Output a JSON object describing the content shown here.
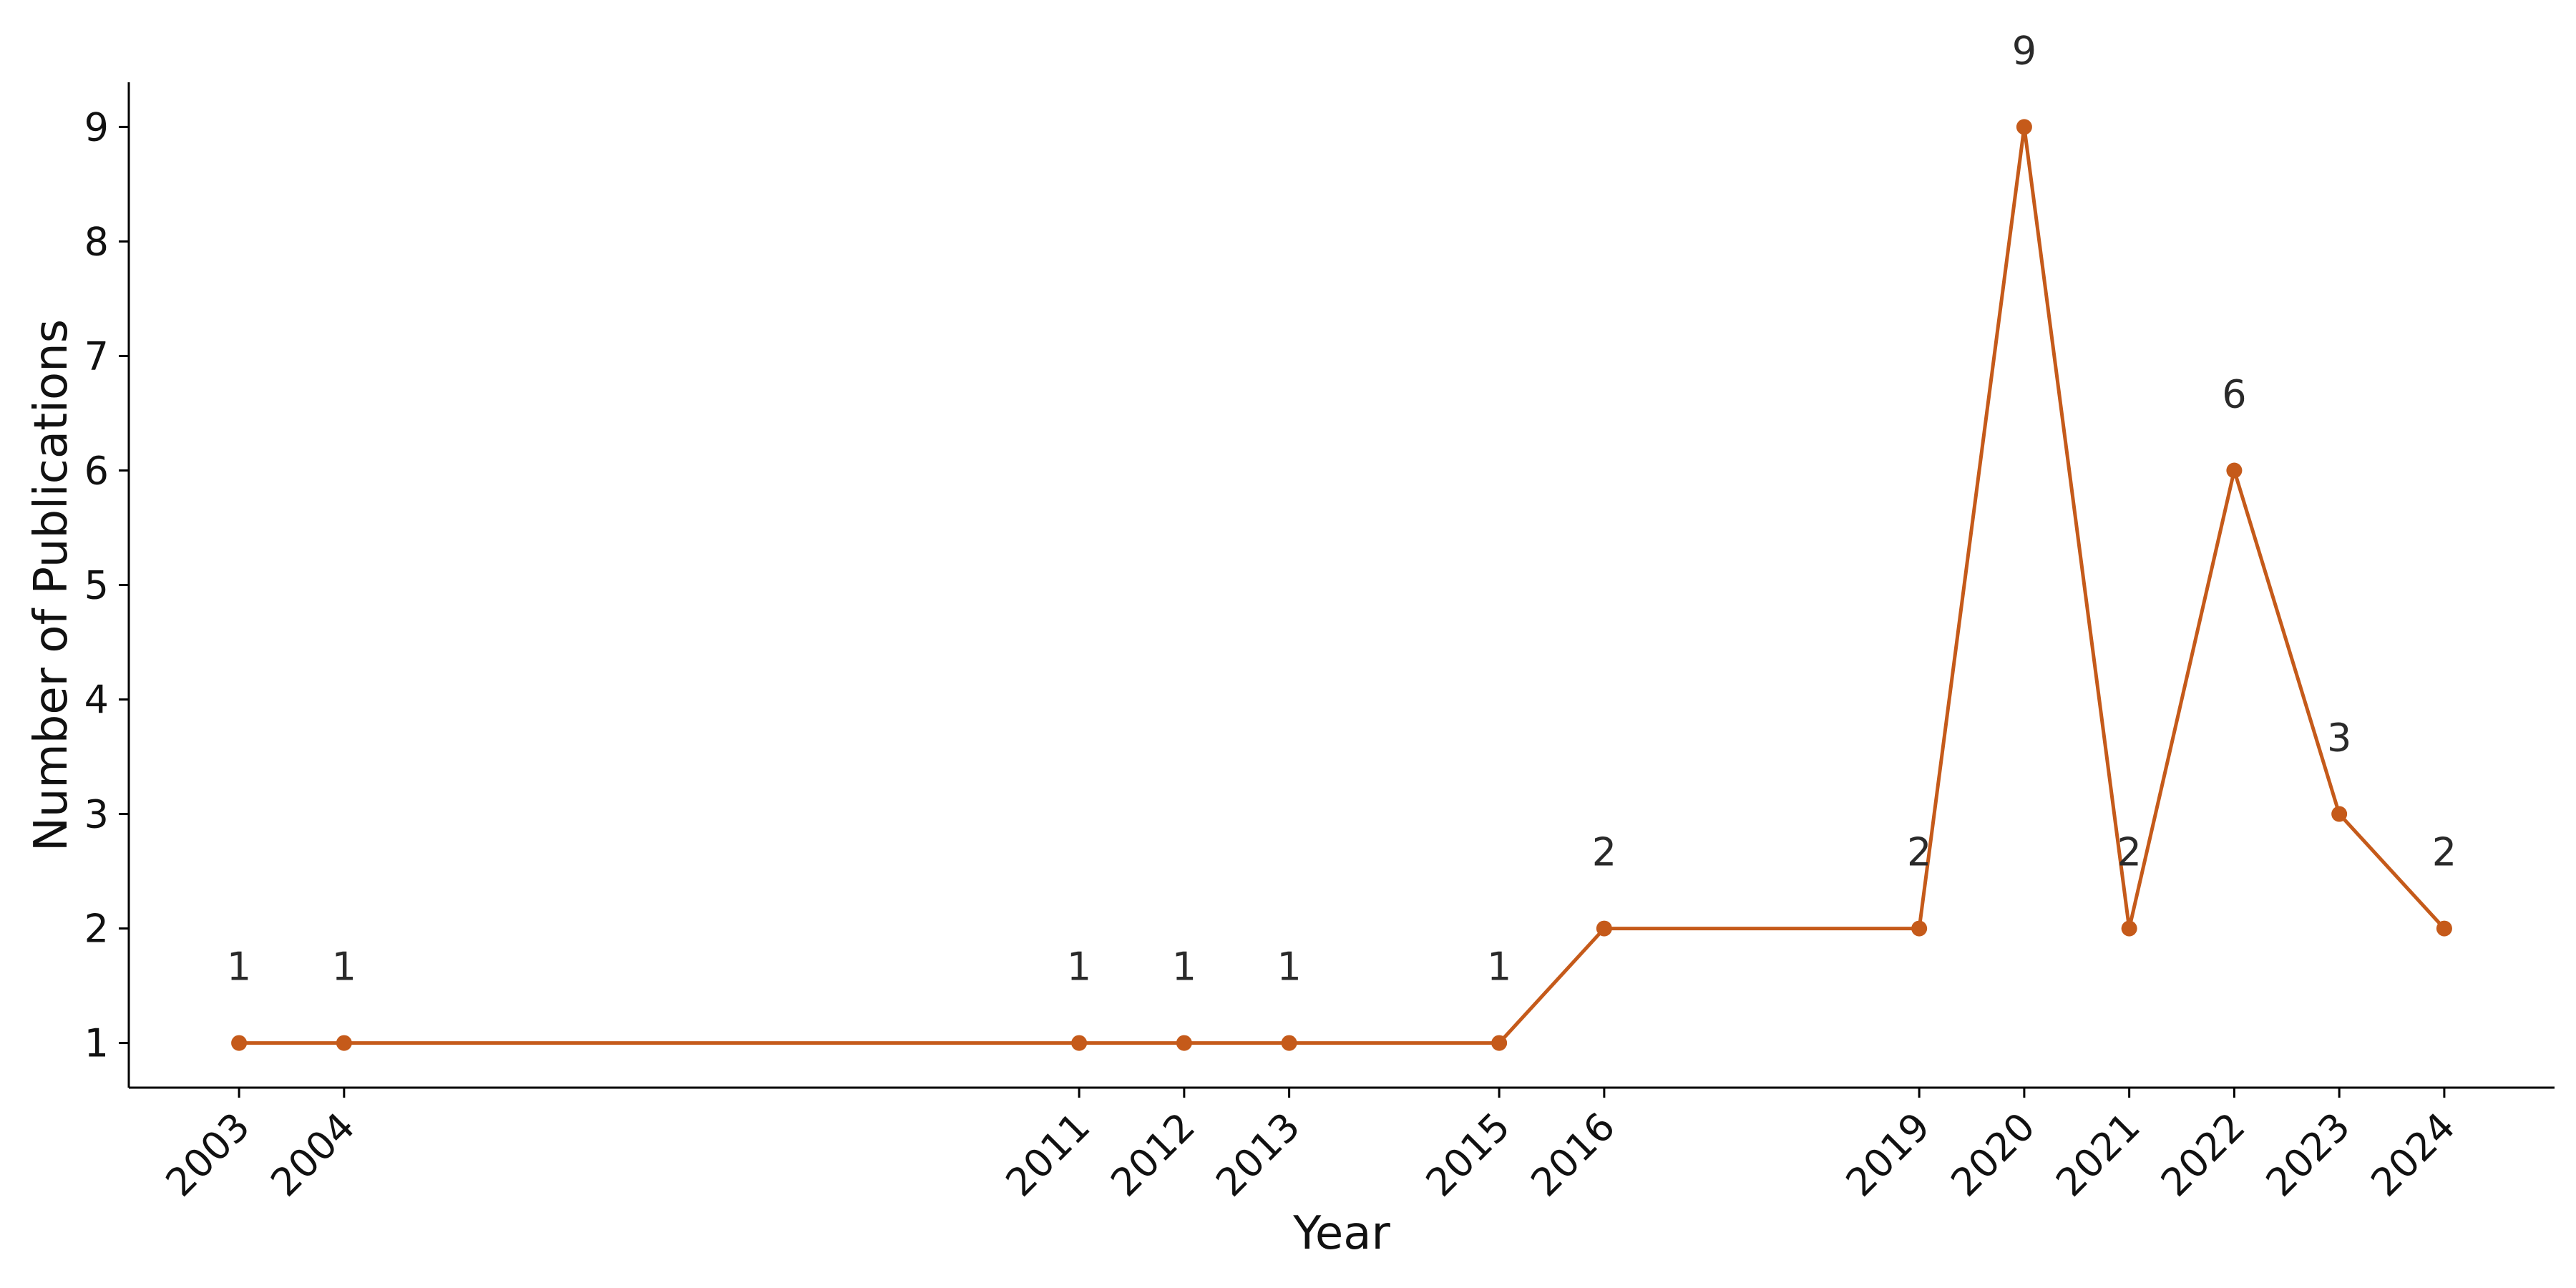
{
  "chart_data": {
    "type": "line",
    "xlabel": "Year",
    "ylabel": "Number of Publications",
    "x": [
      2003,
      2004,
      2011,
      2012,
      2013,
      2015,
      2016,
      2019,
      2020,
      2021,
      2022,
      2023,
      2024
    ],
    "x_tick_labels": [
      "2003",
      "2004",
      "2011",
      "2012",
      "2013",
      "2015",
      "2016",
      "2019",
      "2020",
      "2021",
      "2022",
      "2023",
      "2024"
    ],
    "y_ticks": [
      "1",
      "2",
      "3",
      "4",
      "5",
      "6",
      "7",
      "8",
      "9"
    ],
    "series": [
      {
        "values": [
          1,
          1,
          1,
          1,
          1,
          1,
          2,
          2,
          9,
          2,
          6,
          3,
          2
        ],
        "data_labels": [
          "1",
          "1",
          "1",
          "1",
          "1",
          "1",
          "2",
          "2",
          "9",
          "2",
          "6",
          "3",
          "2"
        ]
      }
    ],
    "xlim": [
      2001.95,
      2025.05
    ],
    "ylim": [
      0.61,
      9.39
    ],
    "grid": false,
    "colors": {
      "line": "#c55a1a",
      "axis": "#000000",
      "text": "#2a2a2a"
    }
  }
}
